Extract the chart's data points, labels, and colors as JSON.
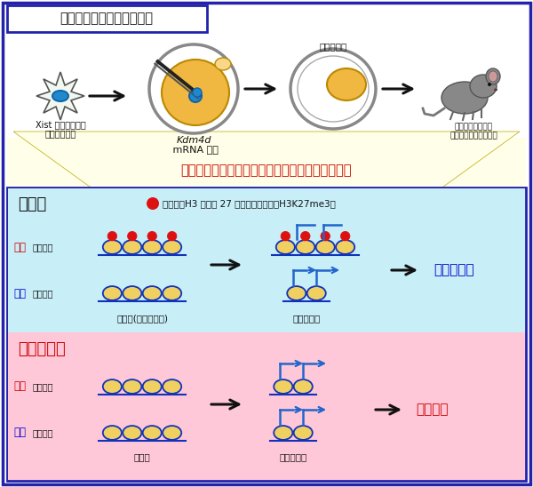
{
  "title_box": "最適化した体細胞核移植法",
  "top_bg": "#ffffff",
  "yellow_bg": "#fffee8",
  "cyan_bg": "#c8eef8",
  "pink_bg": "#ffc8d8",
  "outer_border": "#2222aa",
  "red_text": "#cc0000",
  "blue_text": "#0000cc",
  "black_text": "#111111",
  "histone_color": "#f0d060",
  "histone_outline": "#1133bb",
  "red_dot_color": "#dd1111",
  "arrow_black": "#111111",
  "arrow_blue": "#2266cc",
  "egg_color": "#f0b840",
  "nucleus_color": "#2288cc",
  "mouse_color": "#888888",
  "label_xist1": "Xist ノックアウト",
  "label_xist2": "ドナー体細胞",
  "label_kdm1": "Kdm4d",
  "label_kdm2": " mRNA 注入",
  "label_blast_top": "着床前期胚",
  "label_clone_text1": "クローンは未だに",
  "label_clone_text2": "胚盤・発生異常を示す",
  "label_histone_title": "ヒストン修飾依存的なインプリント遺伝子の破綻",
  "label_fertilized": "受精胚",
  "label_legend": "ヒストンH3 リジン 27 のトリメチル化（H3K27me3）",
  "label_maternal": "母方",
  "label_maternal_sub": "遺伝子座",
  "label_paternal": "父方",
  "label_paternal_sub": "遺伝子座",
  "label_gamete": "配偶子(精子・卵子)",
  "label_preimplant": "着床前期胚",
  "label_normal": "正常に発生",
  "label_clone_embryo": "クローン胚",
  "label_somatic": "体細胞",
  "label_abnormal": "発生異常"
}
